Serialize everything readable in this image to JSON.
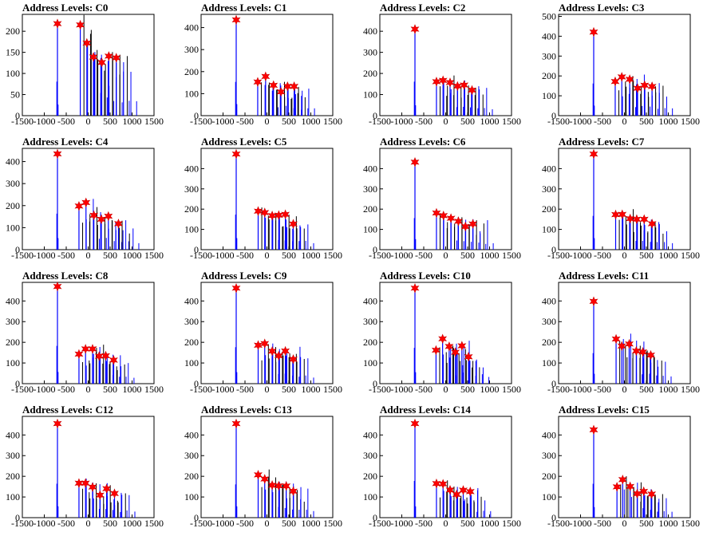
{
  "colors": {
    "blue": "#0000ff",
    "black": "#000000",
    "marker": "#ff0000",
    "frame": "#000000",
    "background": "#ffffff"
  },
  "chart_data": [
    {
      "type": "bar",
      "title": "Address Levels: C0",
      "xlim": [
        -1500,
        1500
      ],
      "ylim": [
        0,
        240
      ],
      "yticks": [
        0,
        50,
        100,
        150,
        200
      ],
      "xticks": [
        "-1500",
        "-1000",
        "-500",
        "0",
        "500",
        "1000",
        "1500"
      ],
      "peaks": [
        {
          "x": -700,
          "y": 218
        },
        {
          "x": -180,
          "y": 215
        },
        {
          "x": -30,
          "y": 172
        },
        {
          "x": 120,
          "y": 139
        },
        {
          "x": 310,
          "y": 126
        },
        {
          "x": 470,
          "y": 141
        },
        {
          "x": 640,
          "y": 137
        }
      ]
    },
    {
      "type": "bar",
      "title": "Address Levels: C1",
      "xlim": [
        -1500,
        1500
      ],
      "ylim": [
        0,
        460
      ],
      "yticks": [
        0,
        100,
        200,
        300,
        400
      ],
      "xticks": [
        "-1500",
        "-1000",
        "-500",
        "0",
        "500",
        "1000",
        "1500"
      ],
      "peaks": [
        {
          "x": -700,
          "y": 435
        },
        {
          "x": -210,
          "y": 153
        },
        {
          "x": -30,
          "y": 178
        },
        {
          "x": 150,
          "y": 138
        },
        {
          "x": 320,
          "y": 108
        },
        {
          "x": 470,
          "y": 133
        },
        {
          "x": 620,
          "y": 133
        }
      ]
    },
    {
      "type": "bar",
      "title": "Address Levels: C2",
      "xlim": [
        -1500,
        1500
      ],
      "ylim": [
        0,
        480
      ],
      "yticks": [
        0,
        100,
        200,
        300,
        400
      ],
      "xticks": [
        "-1500",
        "-1000",
        "-500",
        "0",
        "500",
        "1000",
        "1500"
      ],
      "peaks": [
        {
          "x": -700,
          "y": 410
        },
        {
          "x": -210,
          "y": 161
        },
        {
          "x": -60,
          "y": 167
        },
        {
          "x": 100,
          "y": 157
        },
        {
          "x": 270,
          "y": 140
        },
        {
          "x": 420,
          "y": 145
        },
        {
          "x": 600,
          "y": 121
        }
      ]
    },
    {
      "type": "bar",
      "title": "Address Levels: C3",
      "xlim": [
        -1500,
        1500
      ],
      "ylim": [
        0,
        510
      ],
      "yticks": [
        0,
        100,
        200,
        300,
        400,
        500
      ],
      "xticks": [
        "-1500",
        "-1000",
        "-500",
        "0",
        "500",
        "1000",
        "1500"
      ],
      "peaks": [
        {
          "x": -700,
          "y": 421
        },
        {
          "x": -210,
          "y": 172
        },
        {
          "x": -60,
          "y": 195
        },
        {
          "x": 120,
          "y": 183
        },
        {
          "x": 300,
          "y": 138
        },
        {
          "x": 460,
          "y": 153
        },
        {
          "x": 630,
          "y": 147
        }
      ]
    },
    {
      "type": "bar",
      "title": "Address Levels: C4",
      "xlim": [
        -1500,
        1500
      ],
      "ylim": [
        0,
        460
      ],
      "yticks": [
        0,
        100,
        200,
        300,
        400
      ],
      "xticks": [
        "-1500",
        "-1000",
        "-500",
        "0",
        "500",
        "1000",
        "1500"
      ],
      "peaks": [
        {
          "x": -700,
          "y": 435
        },
        {
          "x": -210,
          "y": 198
        },
        {
          "x": -50,
          "y": 214
        },
        {
          "x": 130,
          "y": 156
        },
        {
          "x": 300,
          "y": 138
        },
        {
          "x": 460,
          "y": 152
        },
        {
          "x": 690,
          "y": 118
        }
      ]
    },
    {
      "type": "bar",
      "title": "Address Levels: C5",
      "xlim": [
        -1500,
        1500
      ],
      "ylim": [
        0,
        500
      ],
      "yticks": [
        0,
        100,
        200,
        300,
        400
      ],
      "xticks": [
        "-1500",
        "-1000",
        "-500",
        "0",
        "500",
        "1000",
        "1500"
      ],
      "peaks": [
        {
          "x": -700,
          "y": 472
        },
        {
          "x": -200,
          "y": 190
        },
        {
          "x": -50,
          "y": 183
        },
        {
          "x": 120,
          "y": 168
        },
        {
          "x": 270,
          "y": 170
        },
        {
          "x": 420,
          "y": 174
        },
        {
          "x": 600,
          "y": 127
        }
      ]
    },
    {
      "type": "bar",
      "title": "Address Levels: C6",
      "xlim": [
        -1500,
        1500
      ],
      "ylim": [
        0,
        500
      ],
      "yticks": [
        0,
        100,
        200,
        300,
        400
      ],
      "xticks": [
        "-1500",
        "-1000",
        "-500",
        "0",
        "500",
        "1000",
        "1500"
      ],
      "peaks": [
        {
          "x": -700,
          "y": 432
        },
        {
          "x": -210,
          "y": 181
        },
        {
          "x": -50,
          "y": 168
        },
        {
          "x": 120,
          "y": 155
        },
        {
          "x": 290,
          "y": 140
        },
        {
          "x": 450,
          "y": 114
        },
        {
          "x": 620,
          "y": 127
        }
      ]
    },
    {
      "type": "bar",
      "title": "Address Levels: C7",
      "xlim": [
        -1500,
        1500
      ],
      "ylim": [
        0,
        500
      ],
      "yticks": [
        0,
        100,
        200,
        300,
        400
      ],
      "xticks": [
        "-1500",
        "-1000",
        "-500",
        "0",
        "500",
        "1000",
        "1500"
      ],
      "peaks": [
        {
          "x": -700,
          "y": 472
        },
        {
          "x": -200,
          "y": 173
        },
        {
          "x": -50,
          "y": 174
        },
        {
          "x": 130,
          "y": 153
        },
        {
          "x": 280,
          "y": 150
        },
        {
          "x": 450,
          "y": 150
        },
        {
          "x": 630,
          "y": 128
        }
      ]
    },
    {
      "type": "bar",
      "title": "Address Levels: C8",
      "xlim": [
        -1500,
        1500
      ],
      "ylim": [
        0,
        490
      ],
      "yticks": [
        0,
        100,
        200,
        300,
        400
      ],
      "xticks": [
        "-1500",
        "-1000",
        "-500",
        "0",
        "500",
        "1000",
        "1500"
      ],
      "peaks": [
        {
          "x": -700,
          "y": 470
        },
        {
          "x": -210,
          "y": 143
        },
        {
          "x": -60,
          "y": 168
        },
        {
          "x": 100,
          "y": 168
        },
        {
          "x": 250,
          "y": 133
        },
        {
          "x": 400,
          "y": 135
        },
        {
          "x": 580,
          "y": 114
        }
      ]
    },
    {
      "type": "bar",
      "title": "Address Levels: C9",
      "xlim": [
        -1500,
        1500
      ],
      "ylim": [
        0,
        490
      ],
      "yticks": [
        0,
        100,
        200,
        300,
        400
      ],
      "xticks": [
        "-1500",
        "-1000",
        "-500",
        "0",
        "500",
        "1000",
        "1500"
      ],
      "peaks": [
        {
          "x": -700,
          "y": 462
        },
        {
          "x": -200,
          "y": 186
        },
        {
          "x": -50,
          "y": 194
        },
        {
          "x": 120,
          "y": 157
        },
        {
          "x": 270,
          "y": 135
        },
        {
          "x": 420,
          "y": 158
        },
        {
          "x": 600,
          "y": 118
        }
      ]
    },
    {
      "type": "bar",
      "title": "Address Levels: C10",
      "xlim": [
        -1500,
        1500
      ],
      "ylim": [
        0,
        490
      ],
      "yticks": [
        0,
        100,
        200,
        300,
        400
      ],
      "xticks": [
        "-1500",
        "-1000",
        "-500",
        "0",
        "500",
        "1000",
        "1500"
      ],
      "peaks": [
        {
          "x": -700,
          "y": 462
        },
        {
          "x": -220,
          "y": 162
        },
        {
          "x": -70,
          "y": 217
        },
        {
          "x": 80,
          "y": 180
        },
        {
          "x": 220,
          "y": 152
        },
        {
          "x": 370,
          "y": 183
        },
        {
          "x": 520,
          "y": 130
        }
      ]
    },
    {
      "type": "bar",
      "title": "Address Levels: C11",
      "xlim": [
        -1500,
        1500
      ],
      "ylim": [
        0,
        490
      ],
      "yticks": [
        0,
        100,
        200,
        300,
        400
      ],
      "xticks": [
        "-1500",
        "-1000",
        "-500",
        "0",
        "500",
        "1000",
        "1500"
      ],
      "peaks": [
        {
          "x": -700,
          "y": 398
        },
        {
          "x": -190,
          "y": 216
        },
        {
          "x": -60,
          "y": 182
        },
        {
          "x": 110,
          "y": 192
        },
        {
          "x": 270,
          "y": 158
        },
        {
          "x": 420,
          "y": 153
        },
        {
          "x": 600,
          "y": 138
        }
      ]
    },
    {
      "type": "bar",
      "title": "Address Levels: C12",
      "xlim": [
        -1500,
        1500
      ],
      "ylim": [
        0,
        490
      ],
      "yticks": [
        0,
        100,
        200,
        300,
        400
      ],
      "xticks": [
        "-1500",
        "-1000",
        "-500",
        "0",
        "500",
        "1000",
        "1500"
      ],
      "peaks": [
        {
          "x": -700,
          "y": 455
        },
        {
          "x": -210,
          "y": 167
        },
        {
          "x": -60,
          "y": 167
        },
        {
          "x": 100,
          "y": 148
        },
        {
          "x": 270,
          "y": 109
        },
        {
          "x": 420,
          "y": 140
        },
        {
          "x": 600,
          "y": 117
        }
      ]
    },
    {
      "type": "bar",
      "title": "Address Levels: C13",
      "xlim": [
        -1500,
        1500
      ],
      "ylim": [
        0,
        490
      ],
      "yticks": [
        0,
        100,
        200,
        300,
        400
      ],
      "xticks": [
        "-1500",
        "-1000",
        "-500",
        "0",
        "500",
        "1000",
        "1500"
      ],
      "peaks": [
        {
          "x": -700,
          "y": 455
        },
        {
          "x": -200,
          "y": 207
        },
        {
          "x": -50,
          "y": 187
        },
        {
          "x": 120,
          "y": 157
        },
        {
          "x": 270,
          "y": 154
        },
        {
          "x": 440,
          "y": 153
        },
        {
          "x": 600,
          "y": 128
        }
      ]
    },
    {
      "type": "bar",
      "title": "Address Levels: C14",
      "xlim": [
        -1500,
        1500
      ],
      "ylim": [
        0,
        490
      ],
      "yticks": [
        0,
        100,
        200,
        300,
        400
      ],
      "xticks": [
        "-1500",
        "-1000",
        "-500",
        "0",
        "500",
        "1000",
        "1500"
      ],
      "peaks": [
        {
          "x": -700,
          "y": 455
        },
        {
          "x": -210,
          "y": 165
        },
        {
          "x": -60,
          "y": 163
        },
        {
          "x": 100,
          "y": 134
        },
        {
          "x": 250,
          "y": 112
        },
        {
          "x": 400,
          "y": 133
        },
        {
          "x": 560,
          "y": 126
        }
      ]
    },
    {
      "type": "bar",
      "title": "Address Levels: C15",
      "xlim": [
        -1500,
        1500
      ],
      "ylim": [
        0,
        490
      ],
      "yticks": [
        0,
        100,
        200,
        300,
        400
      ],
      "xticks": [
        "-1500",
        "-1000",
        "-500",
        "0",
        "500",
        "1000",
        "1500"
      ],
      "peaks": [
        {
          "x": -700,
          "y": 425
        },
        {
          "x": -170,
          "y": 149
        },
        {
          "x": -40,
          "y": 184
        },
        {
          "x": 130,
          "y": 151
        },
        {
          "x": 290,
          "y": 116
        },
        {
          "x": 440,
          "y": 127
        },
        {
          "x": 620,
          "y": 114
        }
      ]
    }
  ]
}
